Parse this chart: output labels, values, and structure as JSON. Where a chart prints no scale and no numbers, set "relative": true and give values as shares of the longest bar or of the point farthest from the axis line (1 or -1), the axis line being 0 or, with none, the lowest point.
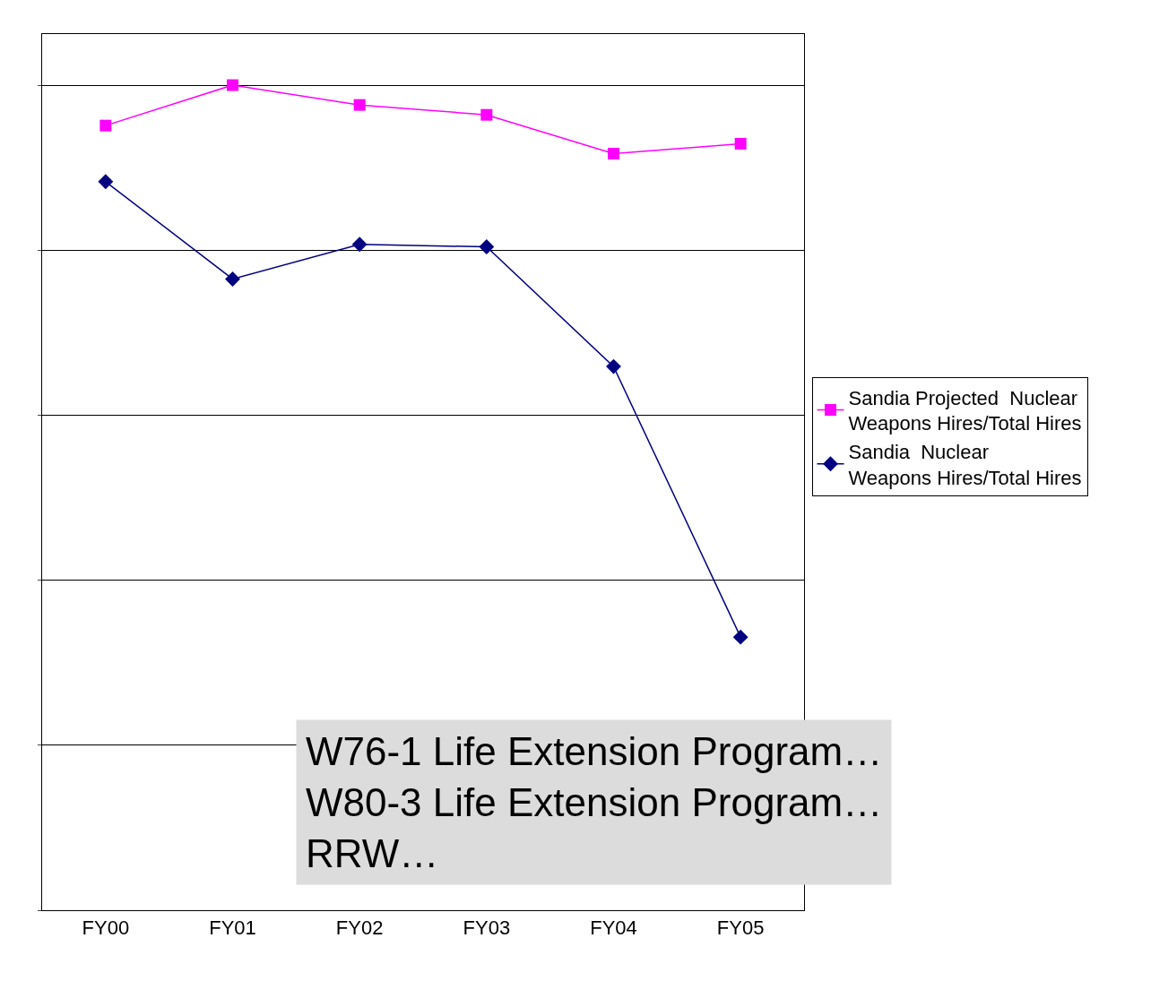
{
  "chart_data": {
    "type": "line",
    "relative": true,
    "categories": [
      "FY00",
      "FY01",
      "FY02",
      "FY03",
      "FY04",
      "FY05"
    ],
    "series": [
      {
        "name": "Sandia Projected Nuclear Weapons Hires/Total Hires",
        "color": "#ff00ff",
        "marker": "square",
        "values": [
          0.951,
          1,
          0.976,
          0.964,
          0.917,
          0.929
        ]
      },
      {
        "name": "Sandia Nuclear Weapons Hires/Total Hires",
        "color": "#000080",
        "marker": "diamond",
        "values": [
          0.883,
          0.765,
          0.807,
          0.804,
          0.659,
          0.331
        ]
      }
    ],
    "grid": "y",
    "legend": "right",
    "line_style": "solid",
    "annotations": [
      "W76-1 Life Extension Program…\nW80-3 Life Extension Program…\nRRW…"
    ]
  }
}
